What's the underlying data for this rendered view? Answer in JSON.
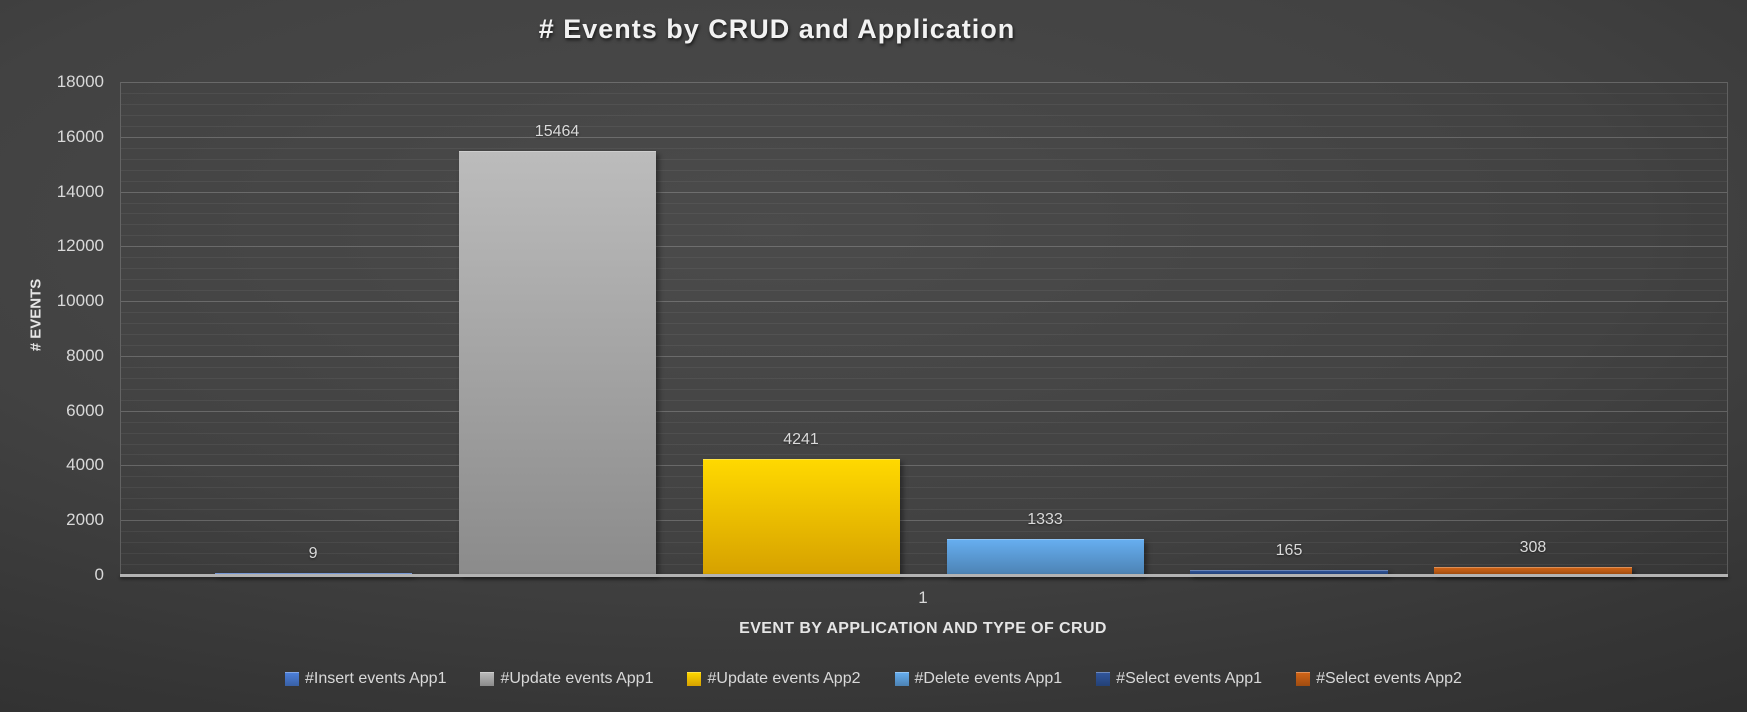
{
  "chart_data": {
    "type": "bar",
    "title": "# Events by CRUD and Application",
    "xlabel": "EVENT BY APPLICATION AND TYPE OF CRUD",
    "ylabel": "# EVENTS",
    "categories": [
      "1"
    ],
    "series": [
      {
        "name": "#Insert events App1",
        "values": [
          9
        ],
        "color": "#4472C4"
      },
      {
        "name": "#Update events App1",
        "values": [
          15464
        ],
        "color": "#A6A6A6"
      },
      {
        "name": "#Update events App2",
        "values": [
          4241
        ],
        "color": "#FFC000"
      },
      {
        "name": "#Delete events App1",
        "values": [
          1333
        ],
        "color": "#5B9BD5"
      },
      {
        "name": "#Select events App1",
        "values": [
          165
        ],
        "color": "#2B4D8C"
      },
      {
        "name": "#Select events App2",
        "values": [
          308
        ],
        "color": "#BC5A14"
      }
    ],
    "ylim": [
      0,
      18000
    ],
    "y_major_unit": 2000,
    "y_minor_unit": 400,
    "grid": true,
    "data_labels": true,
    "legend_position": "bottom"
  },
  "theme": {
    "background_style": "dark-gradient",
    "text_color": "#D9D9D9",
    "title_color": "#F2F2F2",
    "gridline_major_color": "#FFFFFF33",
    "gridline_minor_color": "#FFFFFF0E",
    "axis_line_color": "#B3B3B3"
  }
}
